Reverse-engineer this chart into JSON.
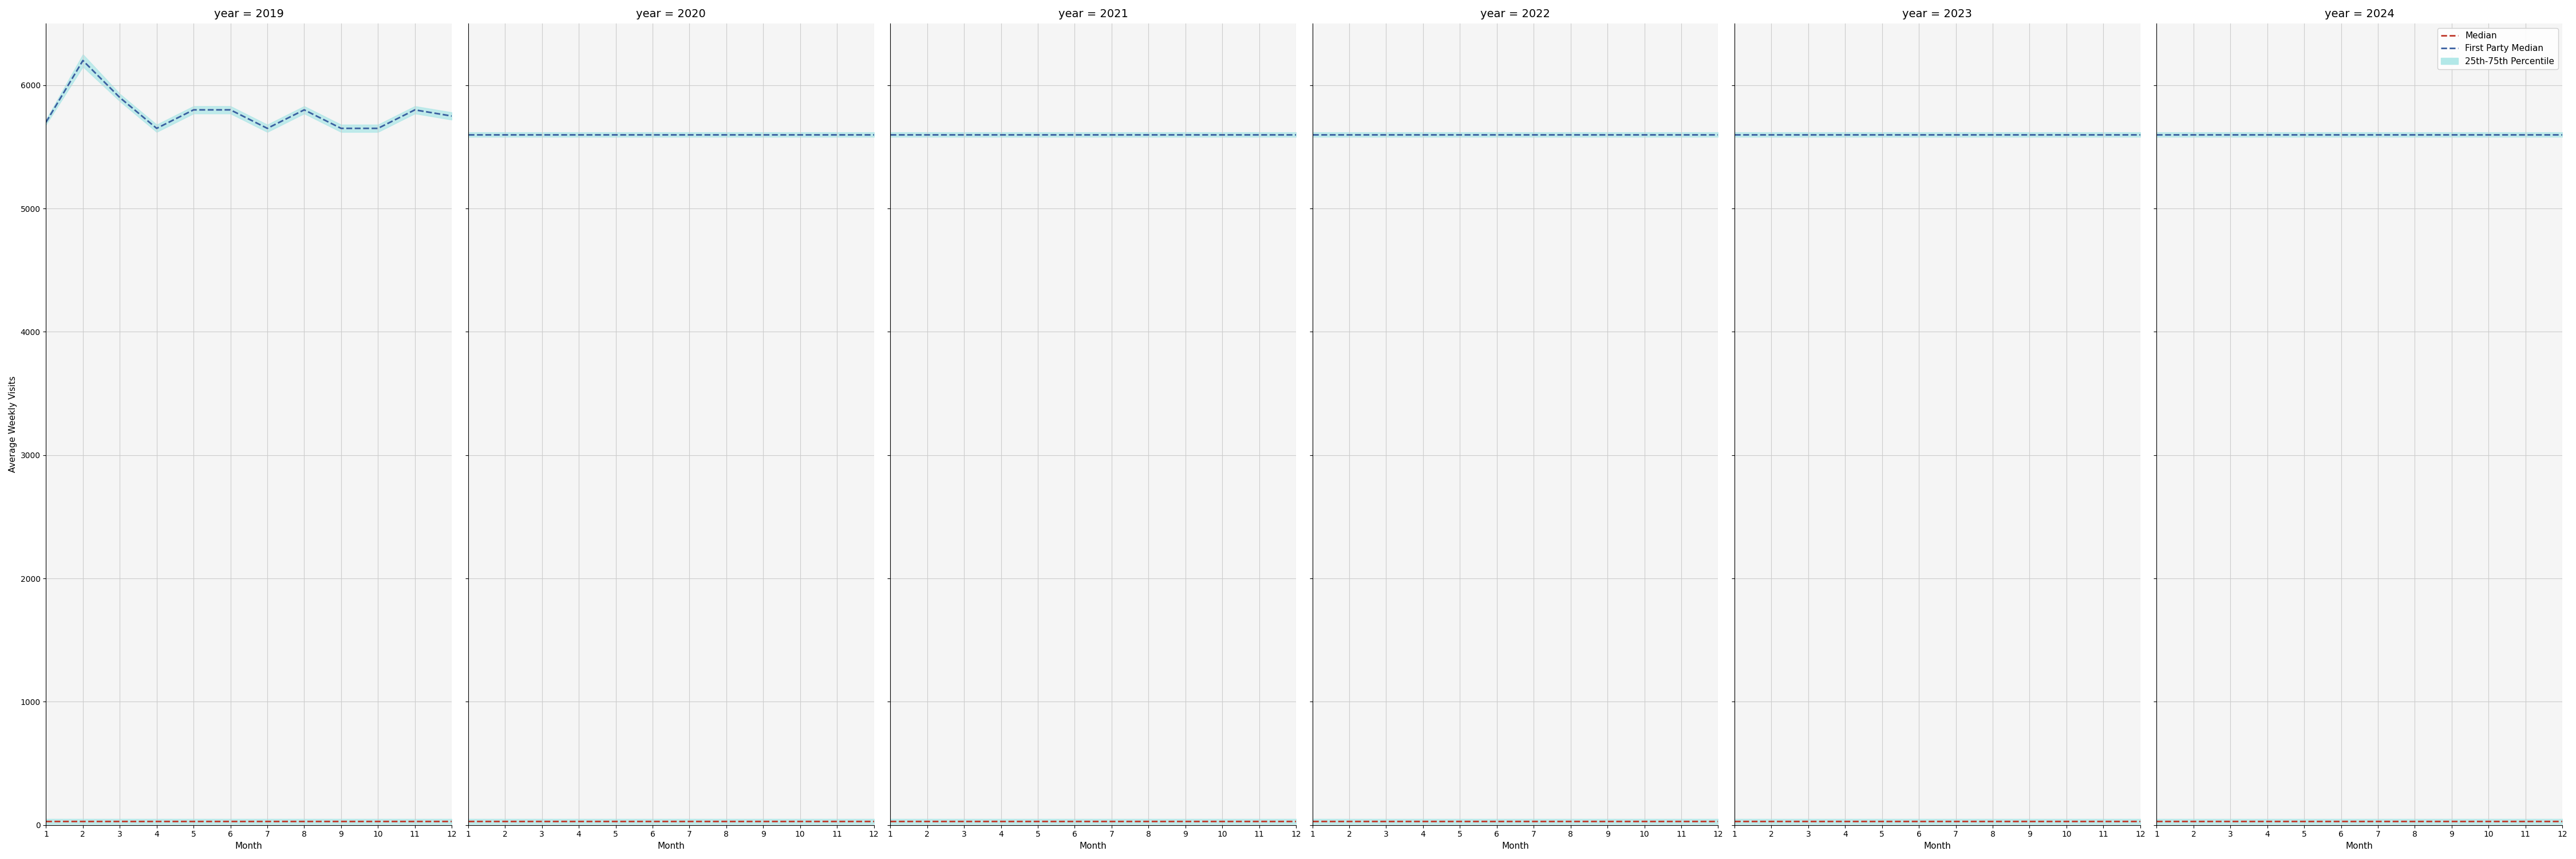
{
  "years": [
    2019,
    2020,
    2021,
    2022,
    2023,
    2024
  ],
  "months": [
    1,
    2,
    3,
    4,
    5,
    6,
    7,
    8,
    9,
    10,
    11,
    12
  ],
  "first_party_median": {
    "2019": [
      5700,
      6200,
      5900,
      5650,
      5800,
      5800,
      5650,
      5800,
      5650,
      5650,
      5800,
      5750
    ],
    "2020": [
      5600,
      5600,
      5600,
      5600,
      5600,
      5600,
      5600,
      5600,
      5600,
      5600,
      5600,
      5600
    ],
    "2021": [
      5600,
      5600,
      5600,
      5600,
      5600,
      5600,
      5600,
      5600,
      5600,
      5600,
      5600,
      5600
    ],
    "2022": [
      5600,
      5600,
      5600,
      5600,
      5600,
      5600,
      5600,
      5600,
      5600,
      5600,
      5600,
      5600
    ],
    "2023": [
      5600,
      5600,
      5600,
      5600,
      5600,
      5600,
      5600,
      5600,
      5600,
      5600,
      5600,
      5600
    ],
    "2024": [
      5600,
      5600,
      5600,
      5600,
      5600,
      5600,
      5600,
      5600,
      5600,
      5600,
      5600,
      5600
    ]
  },
  "median": {
    "2019": [
      30,
      30,
      30,
      30,
      30,
      30,
      30,
      30,
      30,
      30,
      30,
      30
    ],
    "2020": [
      30,
      30,
      30,
      30,
      30,
      30,
      30,
      30,
      30,
      30,
      30,
      30
    ],
    "2021": [
      30,
      30,
      30,
      30,
      30,
      30,
      30,
      30,
      30,
      30,
      30,
      30
    ],
    "2022": [
      30,
      30,
      30,
      30,
      30,
      30,
      30,
      30,
      30,
      30,
      30,
      30
    ],
    "2023": [
      30,
      30,
      30,
      30,
      30,
      30,
      30,
      30,
      30,
      30,
      30,
      30
    ],
    "2024": [
      30,
      30,
      30,
      30,
      30,
      30,
      30,
      30,
      30,
      30,
      30,
      30
    ]
  },
  "percentile_band": {
    "2019": {
      "low": [
        5680,
        6150,
        5870,
        5620,
        5770,
        5770,
        5620,
        5770,
        5620,
        5620,
        5770,
        5720
      ],
      "high": [
        5720,
        6250,
        5930,
        5680,
        5830,
        5830,
        5680,
        5830,
        5680,
        5680,
        5830,
        5780
      ]
    },
    "2020": {
      "low": [
        5580,
        5580,
        5580,
        5580,
        5580,
        5580,
        5580,
        5580,
        5580,
        5580,
        5580,
        5580
      ],
      "high": [
        5620,
        5620,
        5620,
        5620,
        5620,
        5620,
        5620,
        5620,
        5620,
        5620,
        5620,
        5620
      ]
    },
    "2021": {
      "low": [
        5580,
        5580,
        5580,
        5580,
        5580,
        5580,
        5580,
        5580,
        5580,
        5580,
        5580,
        5580
      ],
      "high": [
        5620,
        5620,
        5620,
        5620,
        5620,
        5620,
        5620,
        5620,
        5620,
        5620,
        5620,
        5620
      ]
    },
    "2022": {
      "low": [
        5580,
        5580,
        5580,
        5580,
        5580,
        5580,
        5580,
        5580,
        5580,
        5580,
        5580,
        5580
      ],
      "high": [
        5620,
        5620,
        5620,
        5620,
        5620,
        5620,
        5620,
        5620,
        5620,
        5620,
        5620,
        5620
      ]
    },
    "2023": {
      "low": [
        5580,
        5580,
        5580,
        5580,
        5580,
        5580,
        5580,
        5580,
        5580,
        5580,
        5580,
        5580
      ],
      "high": [
        5620,
        5620,
        5620,
        5620,
        5620,
        5620,
        5620,
        5620,
        5620,
        5620,
        5620,
        5620
      ]
    },
    "2024": {
      "low": [
        5580,
        5580,
        5580,
        5580,
        5580,
        5580,
        5580,
        5580,
        5580,
        5580,
        5580,
        5580
      ],
      "high": [
        5620,
        5620,
        5620,
        5620,
        5620,
        5620,
        5620,
        5620,
        5620,
        5620,
        5620,
        5620
      ]
    }
  },
  "median_band": {
    "low": [
      10,
      10,
      10,
      10,
      10,
      10,
      10,
      10,
      10,
      10,
      10,
      10
    ],
    "high": [
      50,
      50,
      50,
      50,
      50,
      50,
      50,
      50,
      50,
      50,
      50,
      50
    ]
  },
  "ylim": [
    0,
    6500
  ],
  "yticks": [
    0,
    1000,
    2000,
    3000,
    4000,
    5000,
    6000
  ],
  "xticks": [
    1,
    2,
    3,
    4,
    5,
    6,
    7,
    8,
    9,
    10,
    11,
    12
  ],
  "ylabel": "Average Weekly Visits",
  "xlabel": "Month",
  "blue_color": "#3a5fa0",
  "red_color": "#c0392b",
  "band_color": "#b2e8e8",
  "background_color": "#f5f5f5",
  "grid_color": "#cccccc",
  "legend_labels": [
    "Median",
    "First Party Median",
    "25th-75th Percentile"
  ]
}
